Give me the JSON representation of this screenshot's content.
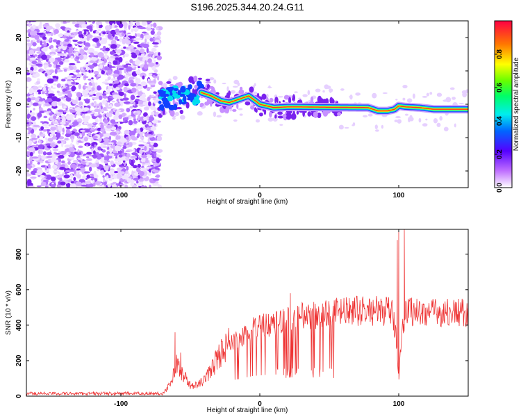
{
  "figure_title": "S196.2025.344.20.24.G11",
  "chart_data": [
    {
      "type": "heatmap",
      "name": "spectrogram",
      "xlabel": "Height of straight line (km)",
      "ylabel": "Frequency (Hz)",
      "xlim": [
        -168,
        150
      ],
      "ylim": [
        -25,
        25
      ],
      "xticks": [
        -100,
        0,
        100
      ],
      "xtick_labels": [
        "-100",
        "0",
        "100"
      ],
      "yticks": [
        -20,
        -10,
        0,
        10,
        20
      ],
      "ytick_labels": [
        "-20",
        "-10",
        "0",
        "10",
        "20"
      ],
      "colorbar": {
        "label": "Normalized spectral amplitude",
        "range": [
          0,
          1
        ],
        "ticks": [
          0.0,
          0.2,
          0.4,
          0.6,
          0.8
        ],
        "tick_labels": [
          "0.0",
          "0.2",
          "0.4",
          "0.6",
          "0.8"
        ]
      },
      "ridge": {
        "x": [
          -72,
          -60,
          -50,
          -42,
          -35,
          -28,
          -22,
          -15,
          -8,
          -3,
          0,
          5,
          10,
          20,
          30,
          50,
          78,
          85,
          92,
          97,
          100,
          105,
          115,
          125,
          140,
          150
        ],
        "freq": [
          1.5,
          2.0,
          2.5,
          3.5,
          2.5,
          1.0,
          0.5,
          1.5,
          2.5,
          1.0,
          0.0,
          -0.5,
          -1.0,
          -0.8,
          -0.8,
          -0.9,
          -1.0,
          -2.0,
          -2.0,
          -1.5,
          -0.5,
          -0.8,
          -1.0,
          -1.5,
          -1.5,
          -1.5
        ]
      }
    },
    {
      "type": "line",
      "name": "snr",
      "xlabel": "Height of straight line (km)",
      "ylabel": "SNR (10 * v/v)",
      "xlim": [
        -168,
        150
      ],
      "ylim": [
        0,
        940
      ],
      "xticks": [
        -100,
        0,
        100
      ],
      "xtick_labels": [
        "-100",
        "0",
        "100"
      ],
      "yticks": [
        0,
        200,
        400,
        600,
        800
      ],
      "ytick_labels": [
        "0",
        "200",
        "400",
        "600",
        "800"
      ],
      "series": [
        {
          "name": "SNR",
          "color": "#ee3333",
          "trend": {
            "x": [
              -168,
              -70,
              -65,
              -60,
              -55,
              -50,
              -45,
              -40,
              -35,
              -30,
              -25,
              -20,
              -15,
              -10,
              -5,
              0,
              5,
              10,
              15,
              20,
              25,
              30,
              40,
              50,
              60,
              70,
              80,
              90,
              95,
              98,
              100,
              102,
              105,
              110,
              120,
              130,
              140,
              150
            ],
            "y": [
              15,
              15,
              60,
              180,
              120,
              60,
              60,
              90,
              150,
              220,
              280,
              300,
              320,
              350,
              380,
              390,
              400,
              410,
              420,
              430,
              440,
              450,
              460,
              470,
              475,
              480,
              480,
              480,
              470,
              350,
              100,
              350,
              480,
              480,
              470,
              470,
              470,
              470
            ]
          },
          "spikes": [
            {
              "x": -61,
              "y": 360
            },
            {
              "x": -57,
              "y": 245
            },
            {
              "x": 22,
              "y": 580
            },
            {
              "x": 99,
              "y": 880
            },
            {
              "x": 100,
              "y": 940
            },
            {
              "x": 104,
              "y": 940
            }
          ]
        }
      ]
    }
  ]
}
